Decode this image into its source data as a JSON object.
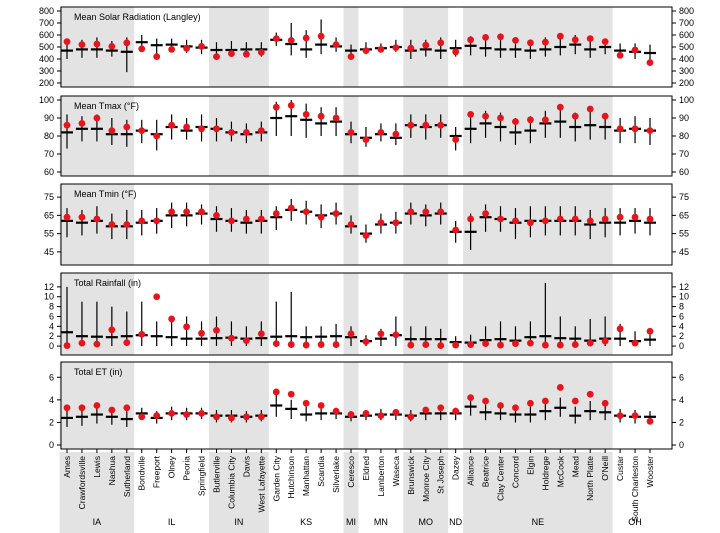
{
  "chart_data": {
    "type": "errorbar-dot",
    "colors": {
      "observed": "#e8141c",
      "model": "#000000",
      "band": "#e3e3e3"
    },
    "states": [
      {
        "name": "IA",
        "shaded": true,
        "sites": [
          "Ames",
          "Crawfordsville",
          "Lewis",
          "Nashua",
          "Sutherland"
        ]
      },
      {
        "name": "IL",
        "shaded": false,
        "sites": [
          "Bondville",
          "Freeport",
          "Olney",
          "Peoria",
          "Springfield"
        ]
      },
      {
        "name": "IN",
        "shaded": true,
        "sites": [
          "Butlerville",
          "Columbia City",
          "Davis",
          "West Lafayette"
        ]
      },
      {
        "name": "KS",
        "shaded": false,
        "sites": [
          "Garden City",
          "Hutchinson",
          "Manhattan",
          "Scandia",
          "Silverlake"
        ]
      },
      {
        "name": "MI",
        "shaded": true,
        "sites": [
          "Ceresco"
        ]
      },
      {
        "name": "MN",
        "shaded": false,
        "sites": [
          "Eldred",
          "Lamberton",
          "Waseca"
        ]
      },
      {
        "name": "MO",
        "shaded": true,
        "sites": [
          "Brunswick",
          "Monroe City",
          "St Joseph"
        ]
      },
      {
        "name": "ND",
        "shaded": false,
        "sites": [
          "Dazey"
        ]
      },
      {
        "name": "NE",
        "shaded": true,
        "sites": [
          "Alliance",
          "Beatrice",
          "Clay Center",
          "Concord",
          "Elgin",
          "Holdrege",
          "McCook",
          "Mead",
          "North Platte",
          "O'Neill"
        ]
      },
      {
        "name": "OH",
        "shaded": false,
        "sites": [
          "Custar",
          "South Charleston",
          "Wooster"
        ]
      }
    ],
    "panels": [
      {
        "title": "Mean Solar Radiation (Langley)",
        "ylim": [
          200,
          800
        ],
        "yticks": [
          200,
          300,
          400,
          500,
          600,
          700,
          800
        ],
        "observed": [
          545,
          520,
          525,
          505,
          535,
          485,
          420,
          480,
          490,
          505,
          420,
          445,
          440,
          455,
          570,
          555,
          575,
          590,
          520,
          420,
          470,
          480,
          495,
          490,
          515,
          535,
          460,
          560,
          580,
          585,
          555,
          535,
          540,
          590,
          560,
          570,
          545,
          430,
          475,
          370
        ],
        "model": [
          470,
          480,
          480,
          470,
          460,
          540,
          515,
          520,
          505,
          495,
          475,
          475,
          480,
          480,
          560,
          525,
          480,
          520,
          505,
          470,
          480,
          490,
          500,
          470,
          480,
          470,
          490,
          510,
          490,
          480,
          480,
          470,
          480,
          500,
          520,
          480,
          500,
          470,
          460,
          450
        ],
        "low": [
          400,
          410,
          410,
          420,
          290,
          480,
          440,
          460,
          450,
          440,
          410,
          420,
          420,
          420,
          510,
          430,
          410,
          440,
          460,
          400,
          440,
          460,
          460,
          400,
          420,
          400,
          420,
          430,
          420,
          410,
          410,
          400,
          420,
          430,
          440,
          410,
          440,
          410,
          400,
          370
        ],
        "high": [
          570,
          560,
          580,
          550,
          580,
          600,
          570,
          570,
          560,
          560,
          540,
          550,
          540,
          540,
          620,
          700,
          640,
          730,
          580,
          520,
          540,
          530,
          560,
          560,
          560,
          580,
          560,
          590,
          580,
          560,
          570,
          560,
          580,
          610,
          600,
          570,
          570,
          530,
          530,
          520
        ]
      },
      {
        "title": "Mean Tmax (°F)",
        "ylim": [
          60,
          100
        ],
        "yticks": [
          60,
          70,
          80,
          90,
          100
        ],
        "observed": [
          86,
          87,
          90,
          83,
          85,
          83,
          80,
          86,
          85,
          84,
          84,
          82,
          82,
          83,
          96,
          97,
          92,
          91,
          90,
          82,
          78,
          82,
          81,
          86,
          86,
          86,
          78,
          92,
          91,
          90,
          88,
          89,
          89,
          96,
          91,
          95,
          91,
          84,
          84,
          83
        ],
        "model": [
          82,
          84,
          84,
          81,
          81,
          83,
          81,
          85,
          83,
          85,
          84,
          82,
          81,
          82,
          90,
          91,
          89,
          87,
          88,
          81,
          79,
          81,
          79,
          86,
          85,
          86,
          80,
          84,
          87,
          85,
          82,
          83,
          87,
          88,
          85,
          86,
          85,
          83,
          84,
          83
        ],
        "low": [
          73,
          77,
          77,
          75,
          74,
          76,
          72,
          78,
          78,
          77,
          77,
          77,
          76,
          77,
          80,
          80,
          79,
          80,
          80,
          76,
          74,
          77,
          75,
          79,
          78,
          79,
          72,
          76,
          79,
          77,
          75,
          76,
          79,
          79,
          77,
          78,
          78,
          76,
          76,
          75
        ],
        "high": [
          92,
          91,
          92,
          90,
          89,
          89,
          89,
          92,
          90,
          92,
          90,
          88,
          87,
          88,
          99,
          100,
          98,
          96,
          96,
          88,
          85,
          87,
          87,
          92,
          92,
          92,
          85,
          91,
          94,
          93,
          90,
          91,
          94,
          96,
          93,
          94,
          92,
          90,
          91,
          90
        ]
      },
      {
        "title": "Mean Tmin (°F)",
        "ylim": [
          40,
          80
        ],
        "yticks": [
          45,
          55,
          65,
          75
        ],
        "observed": [
          64,
          64,
          63,
          60,
          60,
          62,
          62,
          67,
          67,
          67,
          65,
          62,
          63,
          63,
          66,
          69,
          67,
          64,
          66,
          60,
          54,
          61,
          61,
          67,
          67,
          67,
          57,
          63,
          66,
          63,
          62,
          61,
          62,
          63,
          63,
          62,
          63,
          64,
          64,
          63
        ],
        "model": [
          62,
          61,
          62,
          59,
          59,
          61,
          62,
          65,
          65,
          66,
          63,
          62,
          61,
          62,
          64,
          68,
          67,
          65,
          66,
          59,
          55,
          60,
          61,
          66,
          65,
          66,
          56,
          56,
          64,
          63,
          61,
          62,
          62,
          62,
          62,
          60,
          61,
          61,
          62,
          61
        ],
        "low": [
          53,
          54,
          55,
          52,
          52,
          54,
          55,
          58,
          59,
          60,
          56,
          56,
          55,
          55,
          57,
          62,
          60,
          58,
          60,
          55,
          50,
          55,
          55,
          60,
          59,
          60,
          50,
          46,
          56,
          56,
          52,
          53,
          54,
          54,
          54,
          52,
          53,
          54,
          55,
          54
        ],
        "high": [
          69,
          68,
          70,
          66,
          68,
          68,
          69,
          72,
          72,
          71,
          70,
          69,
          68,
          68,
          70,
          74,
          73,
          71,
          72,
          65,
          60,
          66,
          67,
          72,
          71,
          72,
          62,
          66,
          71,
          70,
          69,
          70,
          70,
          70,
          70,
          68,
          69,
          69,
          69,
          69
        ]
      },
      {
        "title": "Total Rainfall (in)",
        "ylim": [
          -1,
          14
        ],
        "yticks": [
          0,
          2,
          4,
          6,
          8,
          10,
          12
        ],
        "observed": [
          0.1,
          0.6,
          0.4,
          3.3,
          0.7,
          2.4,
          10,
          5.5,
          3.9,
          2.6,
          3.2,
          1.6,
          1.1,
          2.5,
          0.5,
          0.3,
          0.2,
          0.3,
          0.3,
          2.5,
          0.9,
          2.5,
          2.3,
          0.2,
          0.3,
          0.1,
          0.2,
          0.3,
          0.5,
          0.2,
          0.5,
          0.6,
          0.2,
          0.2,
          0.3,
          0.6,
          1.0,
          3.5,
          0.6,
          3.0
        ],
        "model": [
          2.8,
          2.0,
          1.9,
          1.8,
          2.0,
          2.2,
          2.0,
          1.8,
          1.5,
          1.5,
          1.6,
          1.7,
          1.5,
          1.6,
          1.9,
          2.0,
          1.8,
          1.9,
          2.0,
          1.8,
          1.0,
          1.5,
          2.2,
          1.4,
          1.4,
          1.4,
          0.8,
          0.7,
          1.2,
          1.4,
          1.1,
          1.8,
          2.0,
          1.6,
          1.5,
          1.1,
          1.5,
          1.5,
          1.0,
          1.3
        ],
        "low": [
          0,
          0,
          0,
          0,
          0,
          0,
          0,
          0,
          0,
          0,
          0,
          0,
          0,
          0,
          0,
          0,
          0,
          0,
          0,
          0,
          0,
          0,
          0,
          0,
          0,
          0,
          0,
          0,
          0,
          0,
          0,
          0,
          0,
          0,
          0,
          0,
          0,
          0,
          0,
          0
        ],
        "high": [
          12,
          9,
          9,
          8,
          7,
          9,
          5,
          6,
          6,
          5,
          6,
          5,
          4,
          5,
          9,
          11,
          4,
          4,
          4.5,
          4,
          2.2,
          3.5,
          6,
          4,
          4,
          3.5,
          2,
          2.3,
          4,
          5,
          4,
          5,
          12.8,
          6,
          4,
          5.5,
          6,
          4.5,
          3,
          3.5
        ]
      },
      {
        "title": "Total ET (in)",
        "ylim": [
          0,
          7
        ],
        "yticks": [
          0,
          2,
          4,
          6
        ],
        "observed": [
          3.3,
          3.3,
          3.5,
          3.1,
          3.3,
          2.5,
          2.6,
          2.8,
          2.7,
          2.8,
          2.5,
          2.4,
          2.5,
          2.5,
          4.7,
          4.5,
          3.7,
          3.5,
          3.0,
          2.7,
          2.8,
          2.6,
          2.9,
          2.5,
          3.1,
          3.3,
          3.0,
          4.2,
          3.9,
          3.5,
          3.3,
          3.7,
          3.9,
          5.1,
          3.9,
          4.5,
          3.7,
          2.6,
          2.6,
          2.1
        ],
        "model": [
          2.4,
          2.5,
          2.7,
          2.5,
          2.3,
          2.8,
          2.4,
          2.8,
          2.8,
          2.8,
          2.6,
          2.6,
          2.5,
          2.6,
          3.5,
          3.2,
          2.7,
          2.8,
          2.8,
          2.5,
          2.6,
          2.7,
          2.7,
          2.6,
          2.8,
          2.8,
          2.8,
          3.4,
          2.9,
          2.8,
          2.7,
          2.7,
          3.0,
          3.3,
          2.6,
          3.0,
          2.9,
          2.6,
          2.5,
          2.5
        ],
        "low": [
          1.6,
          1.7,
          1.9,
          1.8,
          1.6,
          2.2,
          1.9,
          2.2,
          2.2,
          2.3,
          2.0,
          2.0,
          2.0,
          2.1,
          2.5,
          2.3,
          2.1,
          2.2,
          2.3,
          2.1,
          2.2,
          2.2,
          2.2,
          2.1,
          2.2,
          2.2,
          2.2,
          2.6,
          2.2,
          2.2,
          2.0,
          2.0,
          2.2,
          2.5,
          1.9,
          2.2,
          2.2,
          2.0,
          1.9,
          2.0
        ],
        "high": [
          3.1,
          3.2,
          3.5,
          3.2,
          3.0,
          3.3,
          3.0,
          3.4,
          3.3,
          3.3,
          3.1,
          3.1,
          3.0,
          3.1,
          4.5,
          4.0,
          3.4,
          3.5,
          3.3,
          3.0,
          3.1,
          3.2,
          3.1,
          3.1,
          3.3,
          3.4,
          3.3,
          4.0,
          3.6,
          3.5,
          3.4,
          3.4,
          3.8,
          4.2,
          3.4,
          3.9,
          3.6,
          3.2,
          3.1,
          3.0
        ]
      }
    ]
  }
}
